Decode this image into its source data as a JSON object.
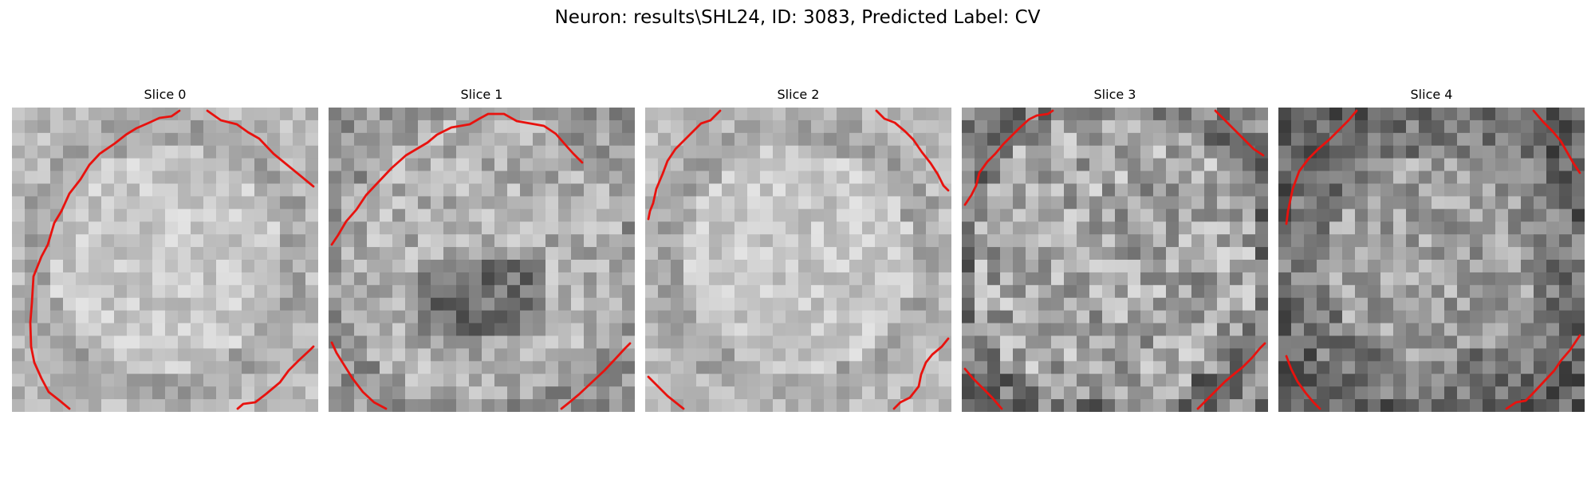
{
  "figure": {
    "title": "Neuron: results\\SHL24, ID: 3083, Predicted Label: CV"
  },
  "colors": {
    "background": "#ffffff",
    "contour": "#e8120e",
    "image_colormap": "gray"
  },
  "panels": [
    {
      "title": "Slice 0",
      "pattern": "bright-center"
    },
    {
      "title": "Slice 1",
      "pattern": "dark-center"
    },
    {
      "title": "Slice 2",
      "pattern": "bright-center"
    },
    {
      "title": "Slice 3",
      "pattern": "noisy"
    },
    {
      "title": "Slice 4",
      "pattern": "dark-ring"
    }
  ]
}
